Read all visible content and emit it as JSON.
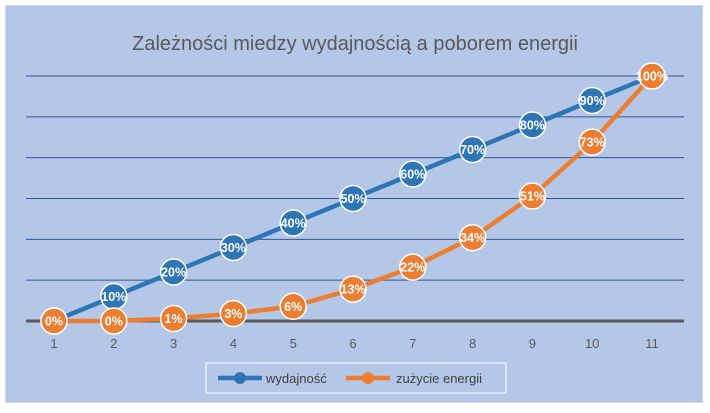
{
  "chart_data": {
    "type": "line",
    "title": "Zależności miedzy wydajnością a poborem energii",
    "xlabel": "",
    "ylabel": "",
    "categories": [
      "1",
      "2",
      "3",
      "4",
      "5",
      "6",
      "7",
      "8",
      "9",
      "10",
      "11"
    ],
    "ylim": [
      0,
      1.0
    ],
    "grid": true,
    "legend": "bottom",
    "series": [
      {
        "name": "wydajność",
        "color": "#2e75b6",
        "values": [
          0,
          0.1,
          0.2,
          0.3,
          0.4,
          0.5,
          0.6,
          0.7,
          0.8,
          0.9,
          1.0
        ],
        "labels": [
          "0%",
          "10%",
          "20%",
          "30%",
          "40%",
          "50%",
          "60%",
          "70%",
          "80%",
          "90%",
          "100%"
        ]
      },
      {
        "name": "zużycie energii",
        "color": "#ed7d31",
        "values": [
          0,
          0,
          0.01,
          0.03,
          0.06,
          0.13,
          0.22,
          0.34,
          0.51,
          0.73,
          1.0
        ],
        "labels": [
          "0%",
          "0%",
          "1%",
          "3%",
          "6%",
          "13%",
          "22%",
          "34%",
          "51%",
          "73%",
          "100%"
        ]
      }
    ]
  }
}
